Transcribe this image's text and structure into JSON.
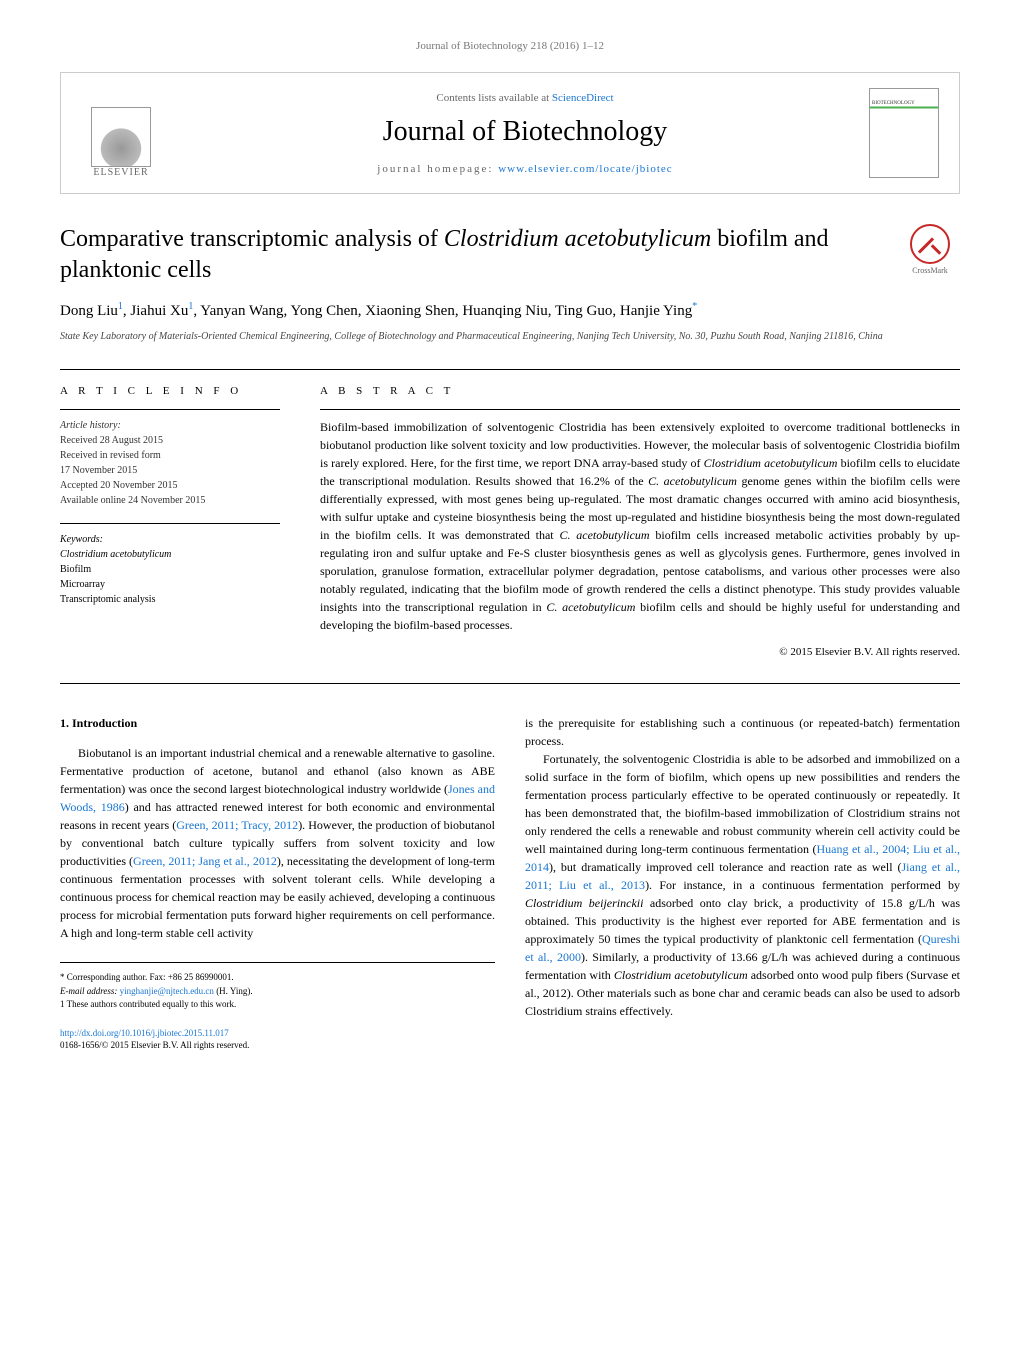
{
  "journal_ref": "Journal of Biotechnology 218 (2016) 1–12",
  "header": {
    "contents_prefix": "Contents lists available at ",
    "contents_link": "ScienceDirect",
    "journal_title": "Journal of Biotechnology",
    "homepage_prefix": "journal homepage: ",
    "homepage_link": "www.elsevier.com/locate/jbiotec",
    "publisher": "ELSEVIER"
  },
  "article": {
    "title_pre": "Comparative transcriptomic analysis of ",
    "title_italic": "Clostridium acetobutylicum",
    "title_post": " biofilm and planktonic cells",
    "crossmark": "CrossMark",
    "authors_html": "Dong Liu",
    "authors": [
      {
        "name": "Dong Liu",
        "sup": "1"
      },
      {
        "name": "Jiahui Xu",
        "sup": "1"
      },
      {
        "name": "Yanyan Wang",
        "sup": ""
      },
      {
        "name": "Yong Chen",
        "sup": ""
      },
      {
        "name": "Xiaoning Shen",
        "sup": ""
      },
      {
        "name": "Huanqing Niu",
        "sup": ""
      },
      {
        "name": "Ting Guo",
        "sup": ""
      },
      {
        "name": "Hanjie Ying",
        "sup": "*"
      }
    ],
    "affiliation": "State Key Laboratory of Materials-Oriented Chemical Engineering, College of Biotechnology and Pharmaceutical Engineering, Nanjing Tech University, No. 30, Puzhu South Road, Nanjing 211816, China"
  },
  "info": {
    "heading": "a r t i c l e   i n f o",
    "history_label": "Article history:",
    "received": "Received 28 August 2015",
    "revised1": "Received in revised form",
    "revised2": "17 November 2015",
    "accepted": "Accepted 20 November 2015",
    "online": "Available online 24 November 2015",
    "keywords_label": "Keywords:",
    "kw1_italic": "Clostridium acetobutylicum",
    "kw2": "Biofilm",
    "kw3": "Microarray",
    "kw4": "Transcriptomic analysis"
  },
  "abstract": {
    "heading": "a b s t r a c t",
    "text_parts": {
      "p1": "Biofilm-based immobilization of solventogenic Clostridia has been extensively exploited to overcome traditional bottlenecks in biobutanol production like solvent toxicity and low productivities. However, the molecular basis of solventogenic Clostridia biofilm is rarely explored. Here, for the first time, we report DNA array-based study of ",
      "it1": "Clostridium acetobutylicum",
      "p2": " biofilm cells to elucidate the transcriptional modulation. Results showed that 16.2% of the ",
      "it2": "C. acetobutylicum",
      "p3": " genome genes within the biofilm cells were differentially expressed, with most genes being up-regulated. The most dramatic changes occurred with amino acid biosynthesis, with sulfur uptake and cysteine biosynthesis being the most up-regulated and histidine biosynthesis being the most down-regulated in the biofilm cells. It was demonstrated that ",
      "it3": "C. acetobutylicum",
      "p4": " biofilm cells increased metabolic activities probably by up-regulating iron and sulfur uptake and Fe-S cluster biosynthesis genes as well as glycolysis genes. Furthermore, genes involved in sporulation, granulose formation, extracellular polymer degradation, pentose catabolisms, and various other processes were also notably regulated, indicating that the biofilm mode of growth rendered the cells a distinct phenotype. This study provides valuable insights into the transcriptional regulation in ",
      "it4": "C. acetobutylicum",
      "p5": " biofilm cells and should be highly useful for understanding and developing the biofilm-based processes."
    },
    "copyright": "© 2015 Elsevier B.V. All rights reserved."
  },
  "body": {
    "section_heading": "1. Introduction",
    "col1": {
      "para1_a": "Biobutanol is an important industrial chemical and a renewable alternative to gasoline. Fermentative production of acetone, butanol and ethanol (also known as ABE fermentation) was once the second largest biotechnological industry worldwide (",
      "ref1": "Jones and Woods, 1986",
      "para1_b": ") and has attracted renewed interest for both economic and environmental reasons in recent years (",
      "ref2": "Green, 2011; Tracy, 2012",
      "para1_c": "). However, the production of biobutanol by conventional batch culture typically suffers from solvent toxicity and low productivities (",
      "ref3": "Green, 2011; Jang et al., 2012",
      "para1_d": "), necessitating the development of long-term continuous fermentation processes with solvent tolerant cells. While developing a continuous process for chemical reaction may be easily achieved, developing a continuous process for microbial fermentation puts forward higher requirements on cell performance. A high and long-term stable cell activity"
    },
    "col2": {
      "para1": "is the prerequisite for establishing such a continuous (or repeated-batch) fermentation process.",
      "para2_a": "Fortunately, the solventogenic Clostridia is able to be adsorbed and immobilized on a solid surface in the form of biofilm, which opens up new possibilities and renders the fermentation process particularly effective to be operated continuously or repeatedly. It has been demonstrated that, the biofilm-based immobilization of Clostridium strains not only rendered the cells a renewable and robust community wherein cell activity could be well maintained during long-term continuous fermentation (",
      "ref1": "Huang et al., 2004; Liu et al., 2014",
      "para2_b": "), but dramatically improved cell tolerance and reaction rate as well (",
      "ref2": "Jiang et al., 2011; Liu et al., 2013",
      "para2_c": "). For instance, in a continuous fermentation performed by ",
      "it1": "Clostridium beijerinckii",
      "para2_d": " adsorbed onto clay brick, a productivity of 15.8 g/L/h was obtained. This productivity is the highest ever reported for ABE fermentation and is approximately 50 times the typical productivity of planktonic cell fermentation (",
      "ref3": "Qureshi et al., 2000",
      "para2_e": "). Similarly, a productivity of 13.66 g/L/h was achieved during a continuous fermentation with ",
      "it2": "Clostridium acetobutylicum",
      "para2_f": " adsorbed onto wood pulp fibers (Survase et al., 2012). Other materials such as bone char and ceramic beads can also be used to adsorb Clostridium strains effectively."
    }
  },
  "footnotes": {
    "corr": "* Corresponding author. Fax: +86 25 86990001.",
    "email_label": "E-mail address: ",
    "email": "yinghanjie@njtech.edu.cn",
    "email_suffix": " (H. Ying).",
    "equal": "1 These authors contributed equally to this work."
  },
  "doi": {
    "link": "http://dx.doi.org/10.1016/j.jbiotec.2015.11.017",
    "issn": "0168-1656/© 2015 Elsevier B.V. All rights reserved."
  },
  "colors": {
    "link": "#1976d2",
    "text": "#000000",
    "muted": "#666666"
  }
}
